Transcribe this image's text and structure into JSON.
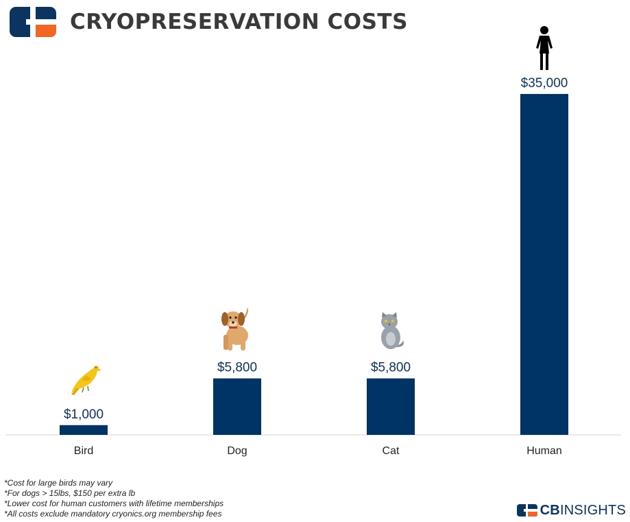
{
  "header": {
    "title": "CRYOPRESERVATION COSTS"
  },
  "colors": {
    "bar": "#003366",
    "logo_blue": "#0b3560",
    "logo_orange": "#f26522",
    "axis": "#cccccc"
  },
  "chart_data": {
    "type": "bar",
    "categories": [
      "Bird",
      "Dog",
      "Cat",
      "Human"
    ],
    "values": [
      1000,
      5800,
      5800,
      35000
    ],
    "value_labels": [
      "$1,000",
      "$5,800",
      "$5,800",
      "$35,000"
    ],
    "icons": [
      "bird-icon",
      "dog-icon",
      "cat-icon",
      "person-icon"
    ],
    "ylim": [
      0,
      35000
    ],
    "grid": false,
    "title": "CRYOPRESERVATION COSTS"
  },
  "footnotes": [
    "*Cost for large birds may vary",
    "*For dogs > 15lbs, $150 per extra lb",
    "*Lower cost for human customers with lifetime memberships",
    "*All costs exclude mandatory cryonics.org membership fees"
  ],
  "brand": {
    "part1": "CB",
    "part2": "INSIGHTS"
  }
}
